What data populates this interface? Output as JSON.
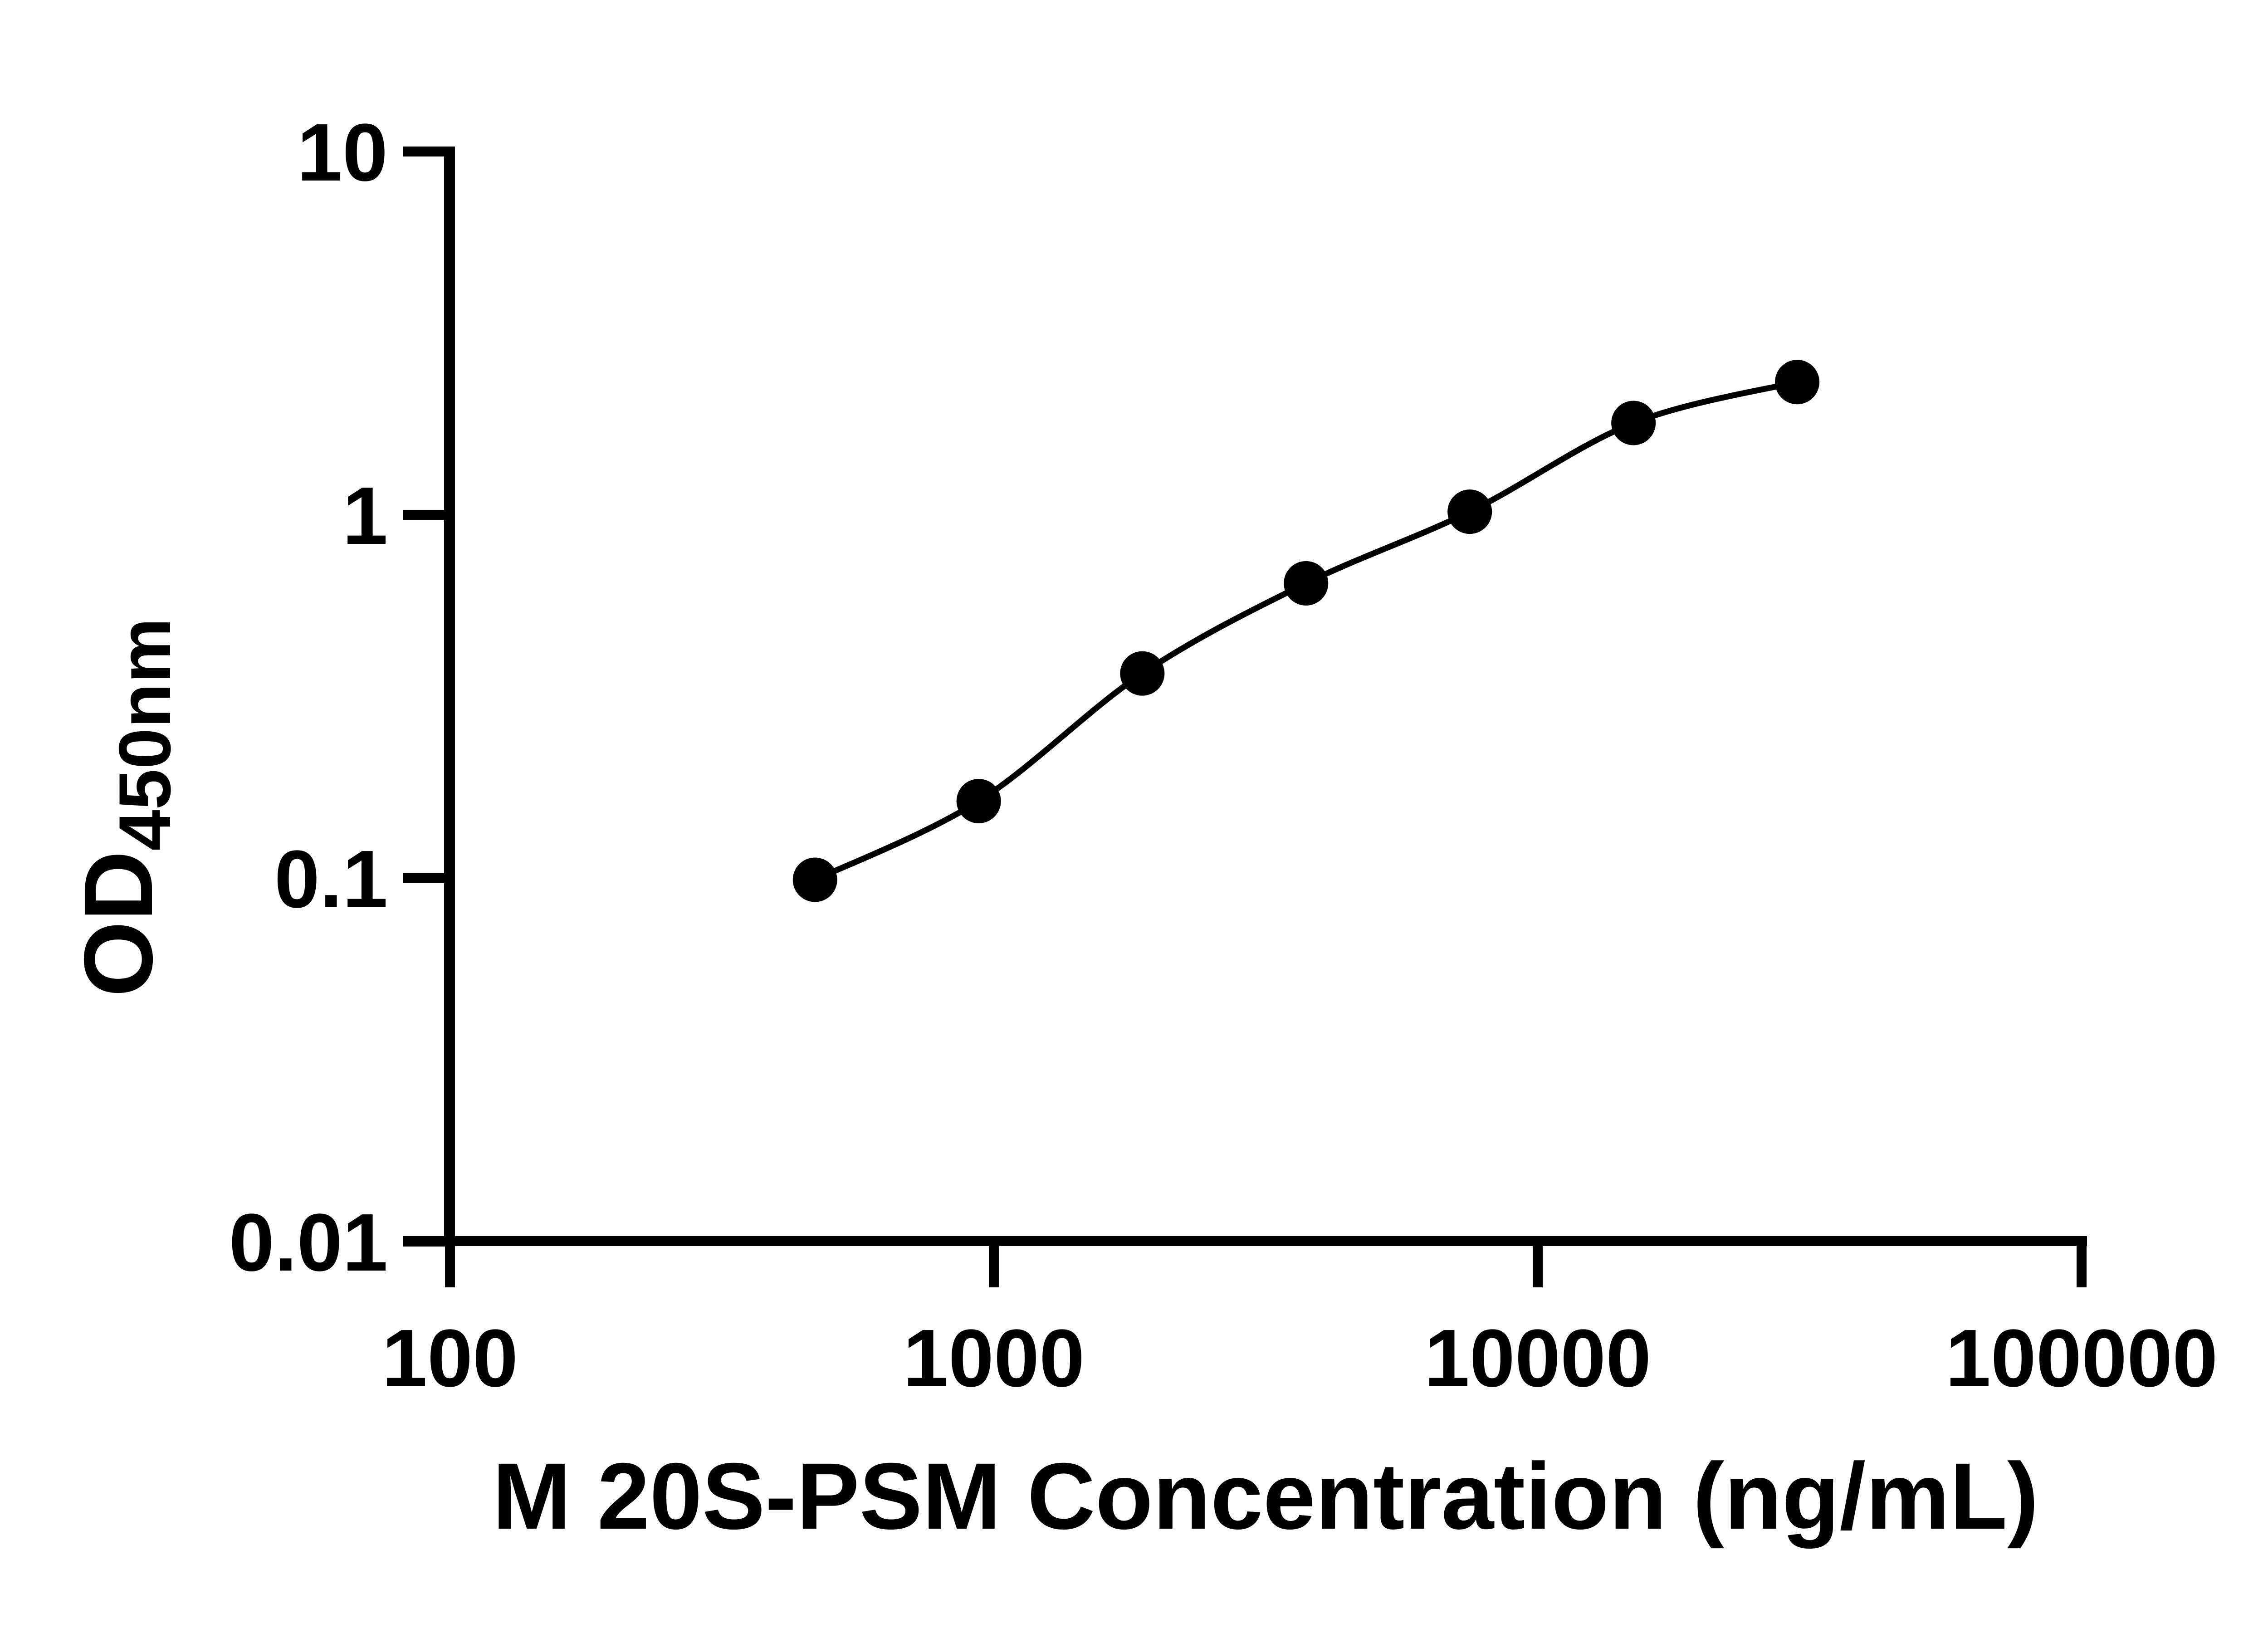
{
  "chart_data": {
    "type": "line",
    "title": "",
    "xlabel": "M 20S-PSM Concentration (ng/mL)",
    "ylabel_main": "OD",
    "ylabel_sub": "450nm",
    "x_scale": "log",
    "y_scale": "log",
    "xlim": [
      100,
      100000
    ],
    "ylim": [
      0.01,
      10
    ],
    "x_ticks": [
      100,
      1000,
      10000,
      100000
    ],
    "y_ticks": [
      10,
      1,
      0.1,
      0.01
    ],
    "grid": false,
    "legend": false,
    "axis_color": "#000000",
    "marker_color": "#000000",
    "line_color": "#000000",
    "background": "#ffffff",
    "series": [
      {
        "name": "standard-curve",
        "marker": "filled-circle",
        "points": [
          {
            "concentration_ng_ml": 469,
            "od": 0.099
          },
          {
            "concentration_ng_ml": 938,
            "od": 0.163
          },
          {
            "concentration_ng_ml": 1875,
            "od": 0.366
          },
          {
            "concentration_ng_ml": 3750,
            "od": 0.648
          },
          {
            "concentration_ng_ml": 7500,
            "od": 1.02
          },
          {
            "concentration_ng_ml": 15000,
            "od": 1.79
          },
          {
            "concentration_ng_ml": 30000,
            "od": 2.32
          }
        ]
      }
    ]
  }
}
